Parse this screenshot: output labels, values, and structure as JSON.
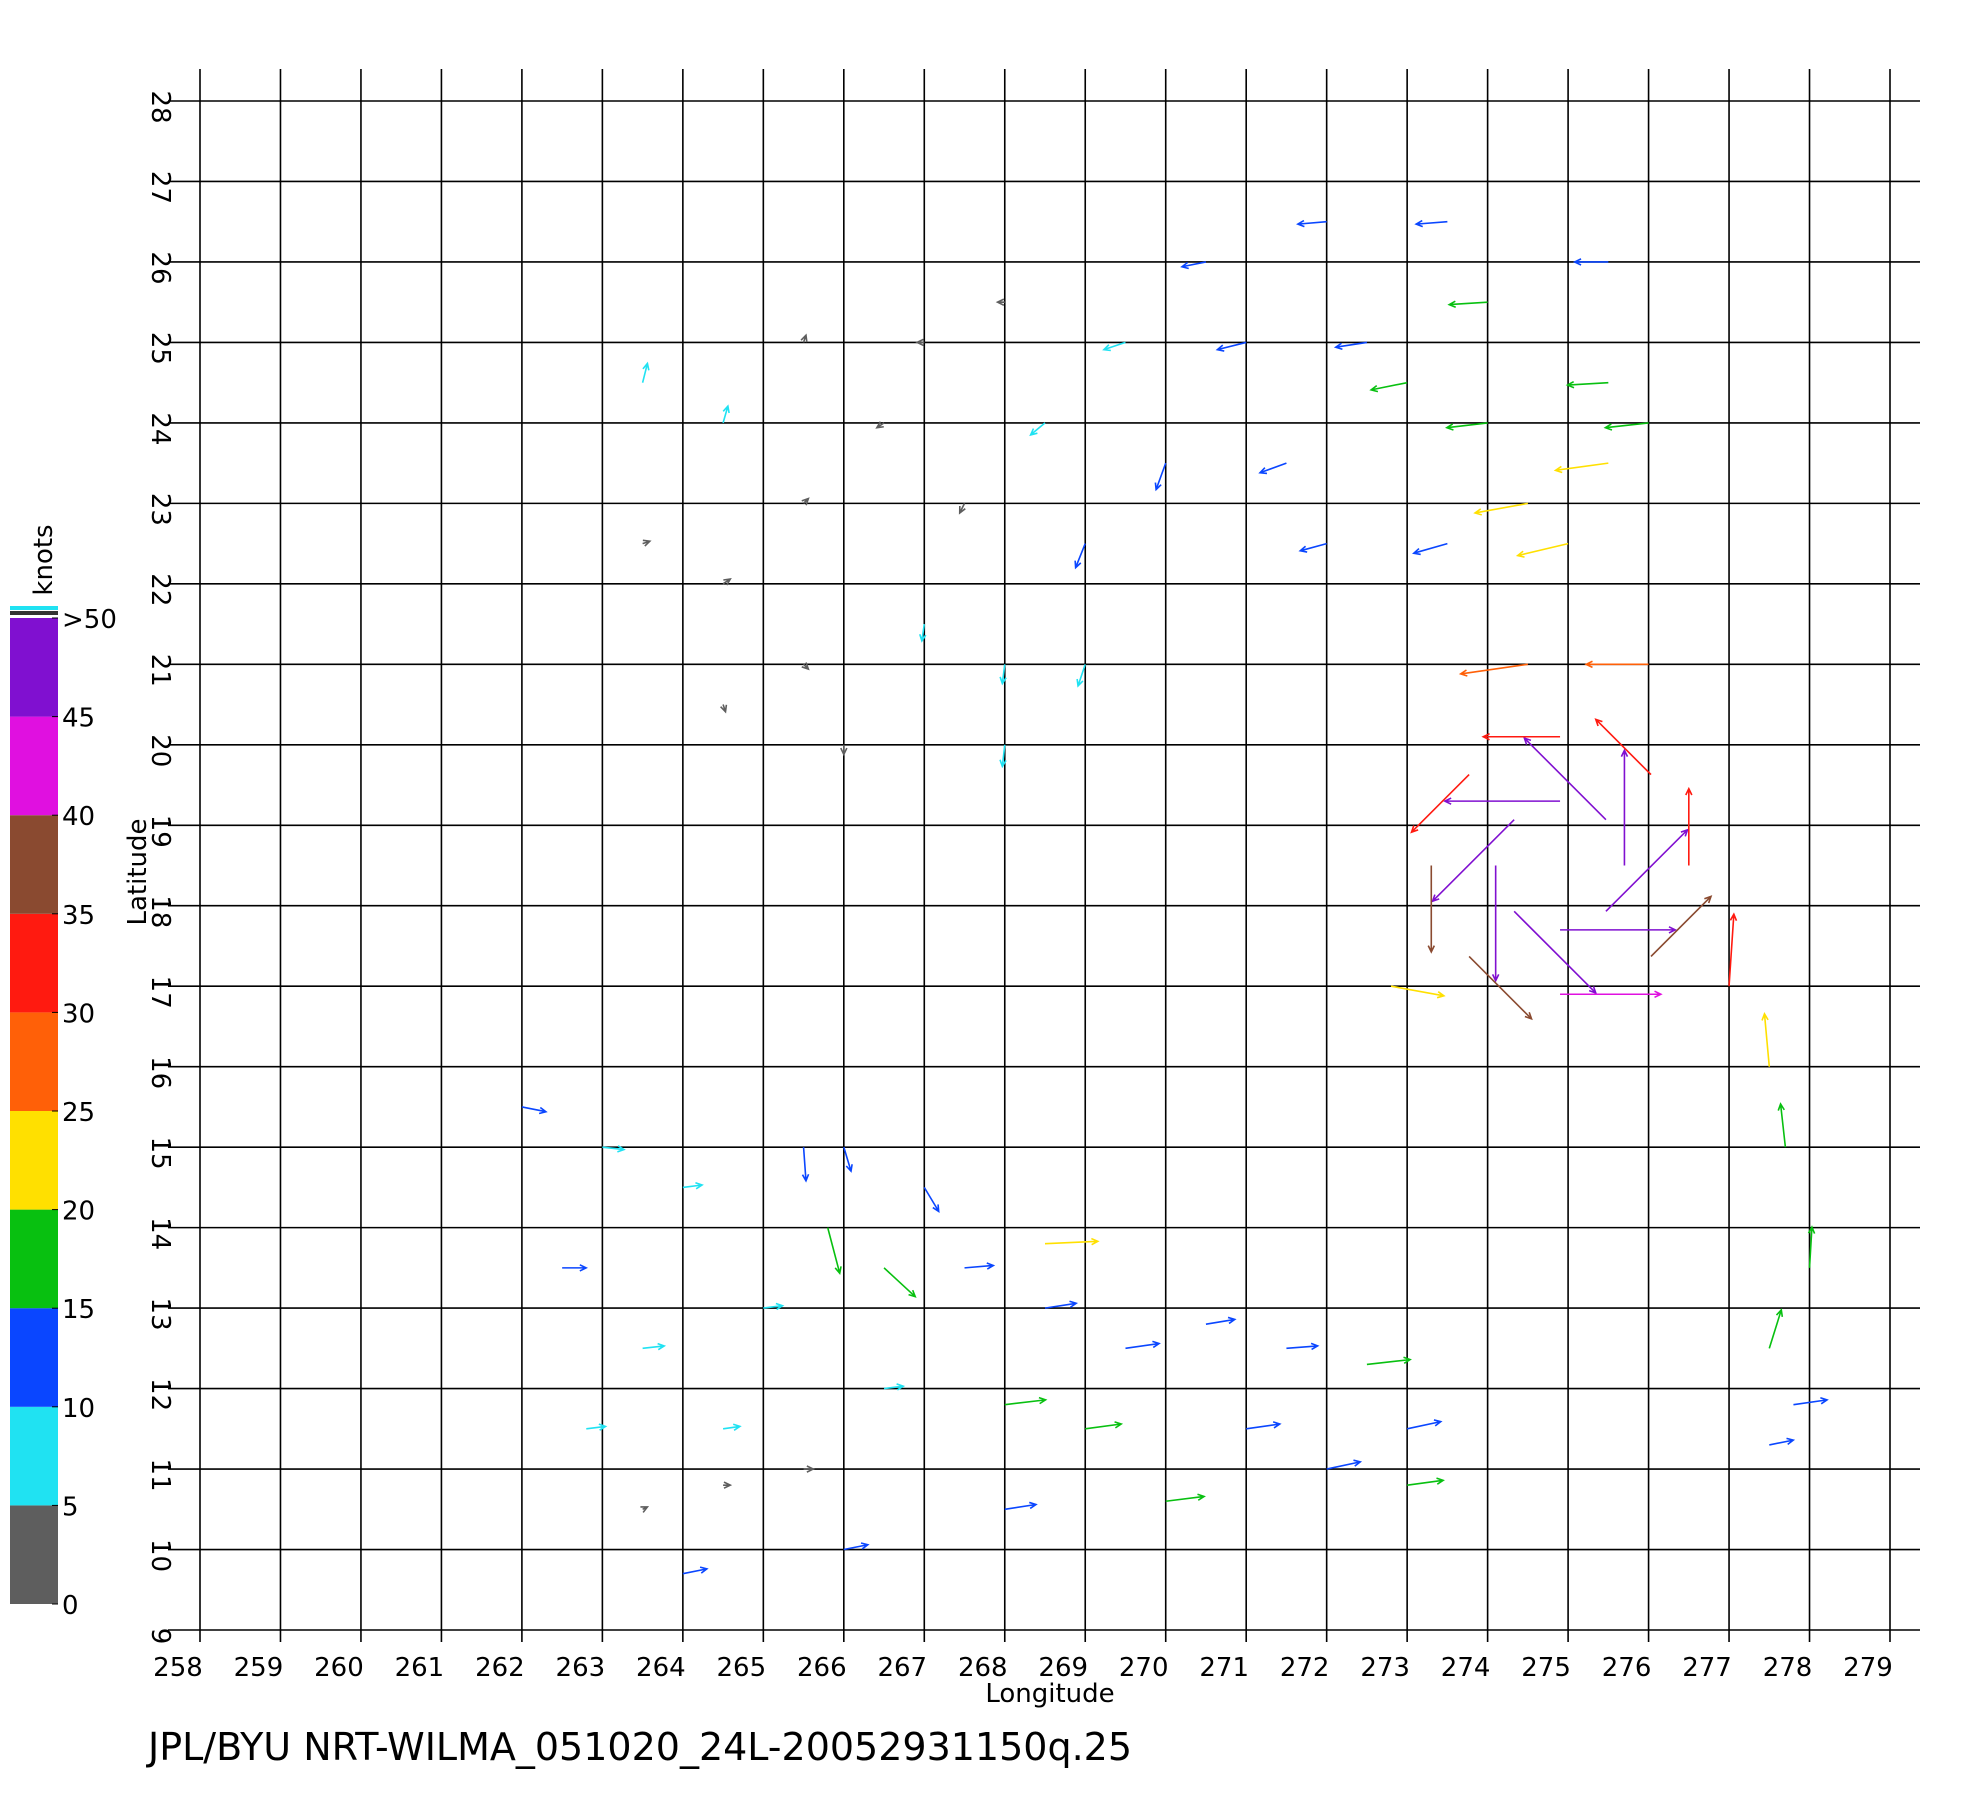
{
  "chart_data": {
    "type": "quiver",
    "title": "JPL/BYU  NRT-WILMA_051020_24L-20052931150q.25",
    "x_label": "Longitude",
    "y_label": "Latitude",
    "xlim": [
      258,
      279
    ],
    "ylim": [
      9,
      28
    ],
    "xticks": [
      258,
      259,
      260,
      261,
      262,
      263,
      264,
      265,
      266,
      267,
      268,
      269,
      270,
      271,
      272,
      273,
      274,
      275,
      276,
      277,
      278,
      279
    ],
    "yticks": [
      9,
      10,
      11,
      12,
      13,
      14,
      15,
      16,
      17,
      18,
      19,
      20,
      21,
      22,
      23,
      24,
      25,
      26,
      27,
      28
    ],
    "grid": true,
    "colorbar": {
      "label": "knots",
      "lim": [
        0,
        50
      ],
      "ticks": [
        0,
        5,
        10,
        15,
        20,
        25,
        30,
        35,
        40,
        45,
        {
          "value": 50,
          "label": ">50"
        }
      ],
      "colors": [
        "#5e5e5e",
        "#20e2f2",
        "#0a46ff",
        "#08c010",
        "#ffe000",
        "#ff6008",
        "#ff1a10",
        "#8a4a30",
        "#e010e0",
        "#8010d0"
      ]
    },
    "x": [
      263.5,
      264.5,
      263.5,
      264.5,
      265.5,
      265.5,
      264.5,
      266,
      265.5,
      266.5,
      267,
      268,
      267.5,
      267,
      268,
      268,
      269,
      269,
      268.5,
      269.5,
      270,
      270.5,
      271,
      271.5,
      272,
      272.5,
      272,
      273,
      273.5,
      274,
      274,
      274.5,
      275,
      275.5,
      275.5,
      275.5,
      276,
      273.5,
      275.7,
      275.47,
      274.9,
      274.33,
      274.1,
      274.33,
      274.9,
      275.47,
      276.5,
      276.03,
      274.9,
      273.77,
      273.3,
      273.77,
      274.9,
      276.03,
      277,
      274.5,
      276,
      272.8,
      277.5,
      277.7,
      278,
      277.5,
      277.8,
      277.5,
      262,
      263,
      262.5,
      263.5,
      262.8,
      263.5,
      264.5,
      264,
      265,
      265.5,
      265.8,
      266.5,
      266,
      267,
      264.5,
      265.5,
      266.5,
      264,
      266,
      267.5,
      268.5,
      269.5,
      270.5,
      268,
      269,
      271,
      272,
      273,
      272.5,
      273,
      268,
      270,
      271.5,
      268.5
    ],
    "y": [
      24.5,
      24,
      22.5,
      22,
      23,
      21,
      20.5,
      20,
      25,
      24,
      25,
      25.5,
      23,
      21.5,
      21,
      20,
      21,
      22.5,
      24,
      25,
      23.5,
      26,
      25,
      23.5,
      26.5,
      25,
      22.5,
      24.5,
      26.5,
      25.5,
      24,
      23,
      22.5,
      26,
      24.5,
      23.5,
      24,
      22.5,
      18.5,
      19.07,
      19.3,
      19.07,
      18.5,
      17.93,
      17.7,
      17.93,
      18.5,
      19.63,
      20.1,
      19.63,
      18.5,
      17.37,
      16.9,
      17.37,
      17,
      21,
      21,
      17,
      16,
      15,
      13.5,
      12.5,
      11.8,
      11.3,
      15.5,
      15,
      13.5,
      12.5,
      11.5,
      10.5,
      10.8,
      14.5,
      13,
      15,
      14,
      13.5,
      15,
      14.5,
      11.5,
      11,
      12,
      9.7,
      10,
      13.5,
      13,
      12.5,
      12.8,
      11.8,
      11.5,
      11.5,
      11,
      11.5,
      12.3,
      10.8,
      10.5,
      10.6,
      12.5,
      13.8
    ],
    "u": [
      2,
      2,
      3,
      3,
      2,
      2,
      1,
      0,
      1,
      -3,
      -3,
      -3,
      -2,
      -1,
      -1,
      -1,
      -3,
      -4,
      -6,
      -9,
      -4,
      -10,
      -12,
      -11,
      -12,
      -13,
      -11,
      -15,
      -13,
      -16,
      -17,
      -22,
      -21,
      -14,
      -17,
      -22,
      -18,
      -14,
      0,
      -34,
      -48,
      -34,
      0,
      34,
      48,
      34,
      0,
      -23,
      -32,
      -24,
      0,
      26,
      42,
      25,
      2,
      -28,
      -26,
      22,
      -2,
      -2,
      1,
      5,
      14,
      10,
      10,
      9,
      10,
      9,
      8,
      2,
      3,
      8,
      8,
      1,
      5,
      13,
      3,
      6,
      7,
      4,
      8,
      10,
      10,
      12,
      13,
      14,
      12,
      17,
      15,
      14,
      14,
      14,
      18,
      15,
      13,
      16,
      13,
      22
    ],
    "v": [
      8,
      7,
      1,
      2,
      2,
      -2,
      -3,
      -4,
      3,
      -2,
      0,
      0,
      -4,
      -7,
      -8,
      -9,
      -9,
      -10,
      -5,
      -3,
      -11,
      -2,
      -3,
      -4,
      -1,
      -2,
      -3,
      -3,
      -1,
      -1,
      -2,
      -4,
      -5,
      0,
      -1,
      -3,
      -2,
      -4,
      48,
      34,
      0,
      -34,
      -48,
      -34,
      0,
      34,
      32,
      23,
      0,
      -24,
      -36,
      -26,
      0,
      25,
      30,
      -4,
      0,
      -4,
      22,
      18,
      17,
      16,
      2,
      2,
      -2,
      -1,
      0,
      1,
      1,
      1,
      0,
      1,
      1,
      -14,
      -19,
      -12,
      -10,
      -10,
      1,
      0,
      1,
      2,
      2,
      1,
      2,
      2,
      2,
      2,
      2,
      2,
      3,
      3,
      2,
      2,
      2,
      2,
      1,
      1
    ]
  }
}
